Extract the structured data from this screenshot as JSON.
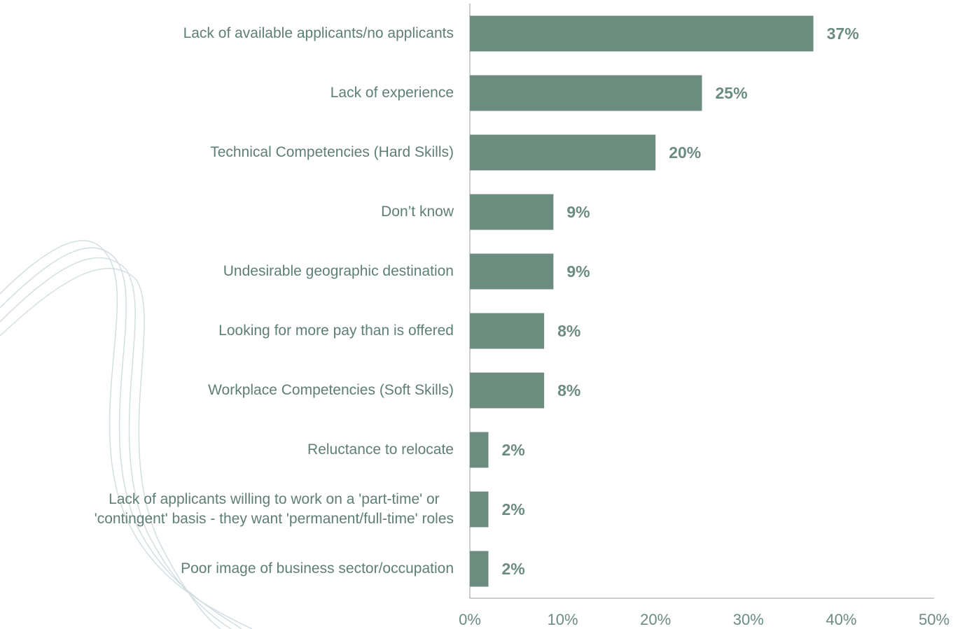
{
  "chart_data": {
    "type": "bar",
    "orientation": "horizontal",
    "categories": [
      "Lack of available applicants/no applicants",
      "Lack of experience",
      "Technical Competencies (Hard Skills)",
      "Don’t know",
      "Undesirable geographic destination",
      "Looking for more pay than is offered",
      "Workplace Competencies (Soft Skills)",
      "Reluctance to relocate",
      "Lack of applicants willing to work on a 'part-time' or\n'contingent' basis - they want 'permanent/full-time' roles",
      "Poor image of business sector/occupation"
    ],
    "values": [
      37,
      25,
      20,
      9,
      9,
      8,
      8,
      2,
      2,
      2
    ],
    "value_labels": [
      "37%",
      "25%",
      "20%",
      "9%",
      "9%",
      "8%",
      "8%",
      "2%",
      "2%",
      "2%"
    ],
    "color": "#6b8c7e",
    "xlim": [
      0,
      50
    ],
    "xticks": [
      {
        "value": 0,
        "label": "0%"
      },
      {
        "value": 10,
        "label": "10%"
      },
      {
        "value": 20,
        "label": "20%"
      },
      {
        "value": 30,
        "label": "30%"
      },
      {
        "value": 40,
        "label": "40%"
      },
      {
        "value": 50,
        "label": "50%"
      }
    ],
    "grid": false
  }
}
